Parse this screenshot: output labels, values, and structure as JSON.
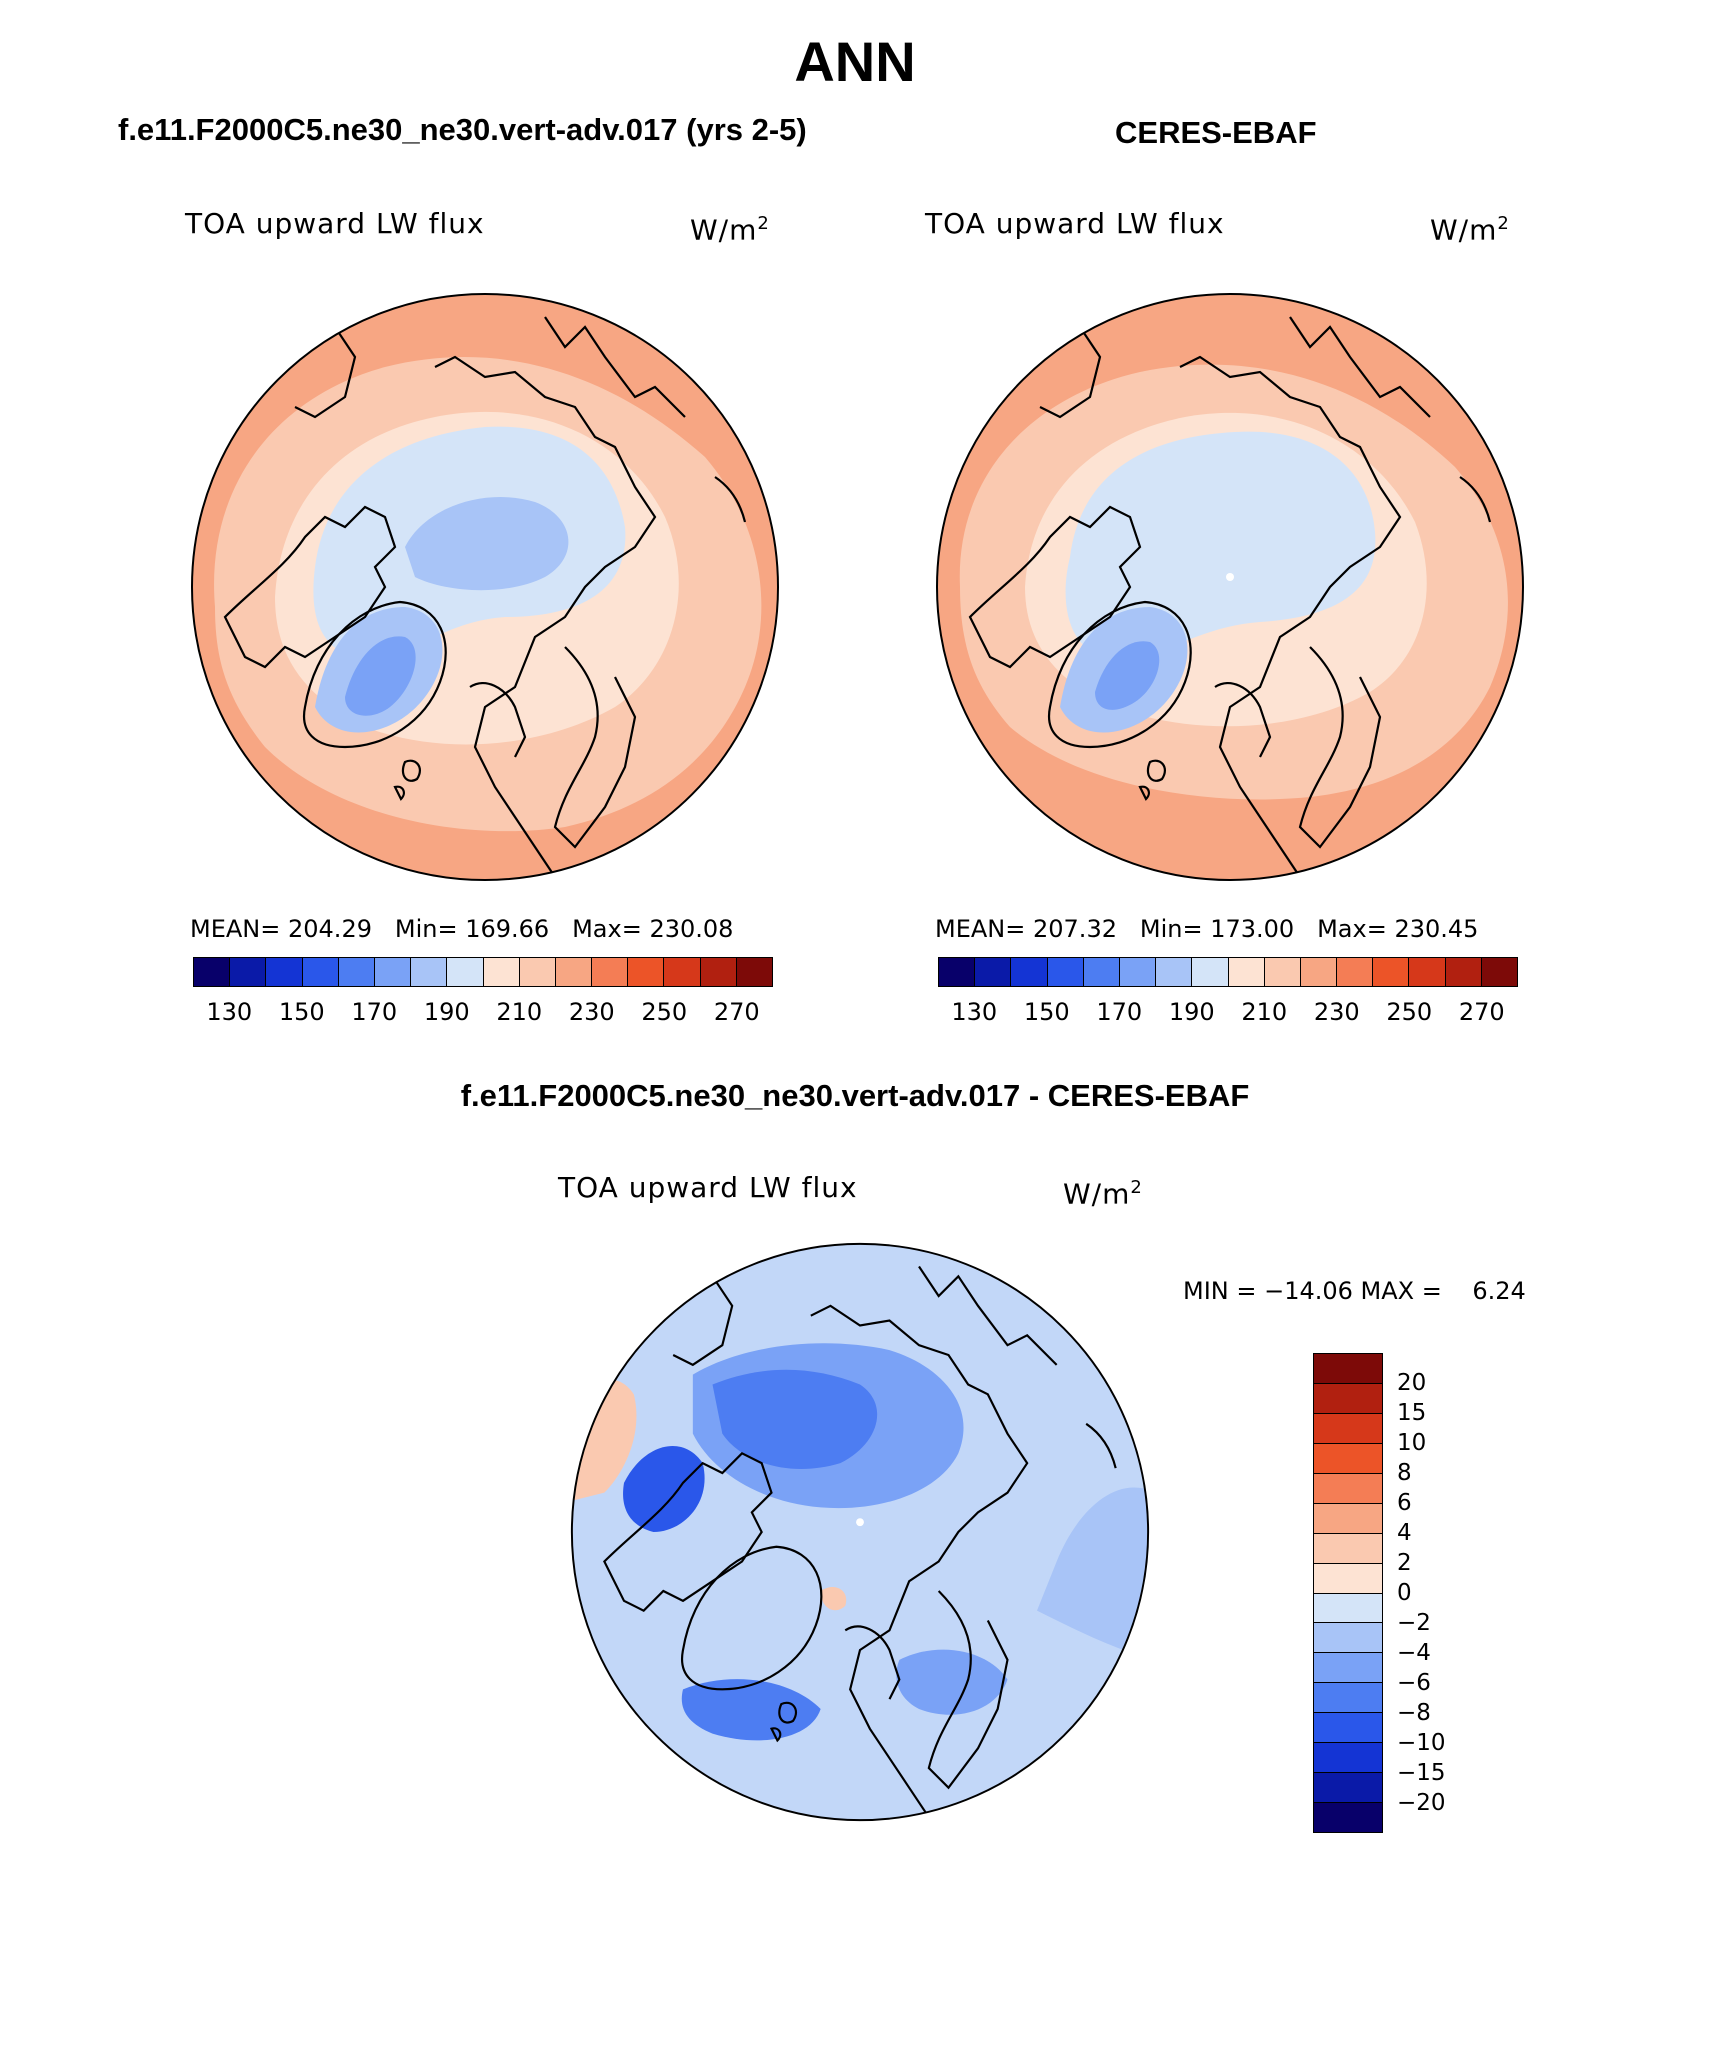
{
  "title": "ANN",
  "panels": [
    {
      "subtitle": "f.e11.F2000C5.ne30_ne30.vert-adv.017 (yrs 2-5)",
      "variable": "TOA upward LW flux",
      "units": "W/m",
      "units_sup": "2",
      "stats": {
        "mean_label": "MEAN=",
        "mean": "204.29",
        "min_label": "Min=",
        "min": "169.66",
        "max_label": "Max=",
        "max": "230.08"
      }
    },
    {
      "subtitle": "CERES-EBAF",
      "variable": "TOA upward LW flux",
      "units": "W/m",
      "units_sup": "2",
      "stats": {
        "mean_label": "MEAN=",
        "mean": "207.32",
        "min_label": "Min=",
        "min": "173.00",
        "max_label": "Max=",
        "max": "230.45"
      }
    },
    {
      "subtitle": "f.e11.F2000C5.ne30_ne30.vert-adv.017 - CERES-EBAF",
      "variable": "TOA upward LW flux",
      "units": "W/m",
      "units_sup": "2",
      "minmax_text": "MIN = −14.06 MAX =    6.24"
    }
  ],
  "abs_colorbar": {
    "colors": [
      "#08006a",
      "#0a1aa8",
      "#1434d4",
      "#2a57ea",
      "#4d7df2",
      "#7aa2f6",
      "#a8c4f7",
      "#d4e4f8",
      "#fde3d3",
      "#fac9b0",
      "#f7a683",
      "#f47d55",
      "#ec5428",
      "#d6381a",
      "#b12010",
      "#7d0a08"
    ],
    "tick_labels": [
      "130",
      "150",
      "170",
      "190",
      "210",
      "230",
      "250",
      "270"
    ]
  },
  "diff_colorbar": {
    "colors": [
      "#7d0a08",
      "#b12010",
      "#d6381a",
      "#ec5428",
      "#f47d55",
      "#f7a683",
      "#fac9b0",
      "#fde3d3",
      "#d4e4f8",
      "#a8c4f7",
      "#7aa2f6",
      "#4d7df2",
      "#2a57ea",
      "#1434d4",
      "#0a1aa8",
      "#08006a"
    ],
    "tick_labels": [
      "20",
      "15",
      "10",
      "8",
      "6",
      "4",
      "2",
      "0",
      "−2",
      "−4",
      "−6",
      "−8",
      "−10",
      "−15",
      "−20"
    ]
  },
  "colors": {
    "land_outline": "#000000",
    "map_border": "#000000"
  }
}
